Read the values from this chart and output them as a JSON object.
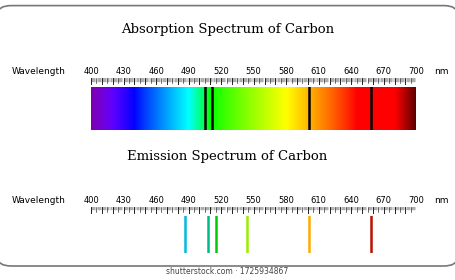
{
  "title_absorption": "Absorption Spectrum of Carbon",
  "title_emission": "Emission Spectrum of Carbon",
  "wavelength_label": "Wavelength",
  "wavelength_unit": "nm",
  "wl_min": 400,
  "wl_max": 700,
  "tick_positions": [
    400,
    430,
    460,
    490,
    520,
    550,
    580,
    610,
    640,
    670,
    700
  ],
  "absorption_dark_lines": [
    505,
    512,
    601,
    658
  ],
  "emission_lines": [
    {
      "wl": 487,
      "color": "#00BBDD"
    },
    {
      "wl": 508,
      "color": "#00BB88"
    },
    {
      "wl": 515,
      "color": "#00CC00"
    },
    {
      "wl": 544,
      "color": "#99EE00"
    },
    {
      "wl": 601,
      "color": "#FFAA00"
    },
    {
      "wl": 658,
      "color": "#BB1100"
    }
  ],
  "bg_color": "#ffffff",
  "outer_border_color": "#777777",
  "title_fontsize": 9.5,
  "label_fontsize": 6.5,
  "tick_fontsize": 6,
  "watermark": "shutterstock.com · 1725934867",
  "watermark_fontsize": 5.5
}
